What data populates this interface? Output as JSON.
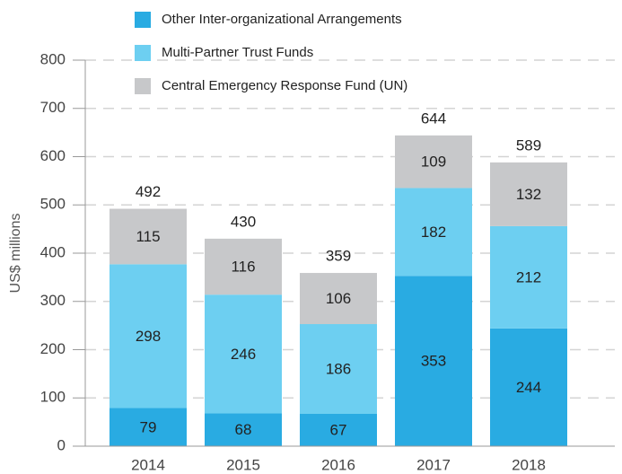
{
  "chart_data": {
    "type": "stacked-bar",
    "y_label": "US$ millions",
    "categories": [
      "2014",
      "2015",
      "2016",
      "2017",
      "2018"
    ],
    "series": [
      {
        "name": "Other Inter-organizational Arrangements",
        "color": "#29abe2",
        "values": [
          79,
          68,
          67,
          353,
          244
        ]
      },
      {
        "name": "Multi-Partner Trust Funds",
        "color": "#6dcff1",
        "values": [
          298,
          246,
          186,
          182,
          212
        ]
      },
      {
        "name": "Central Emergency Response Fund (UN)",
        "color": "#c7c8ca",
        "values": [
          115,
          116,
          106,
          109,
          132
        ]
      }
    ],
    "totals": [
      492,
      430,
      359,
      644,
      589
    ],
    "ylim": [
      0,
      800
    ],
    "yticks": [
      0,
      100,
      200,
      300,
      400,
      500,
      600,
      700,
      800
    ],
    "grid": true
  }
}
